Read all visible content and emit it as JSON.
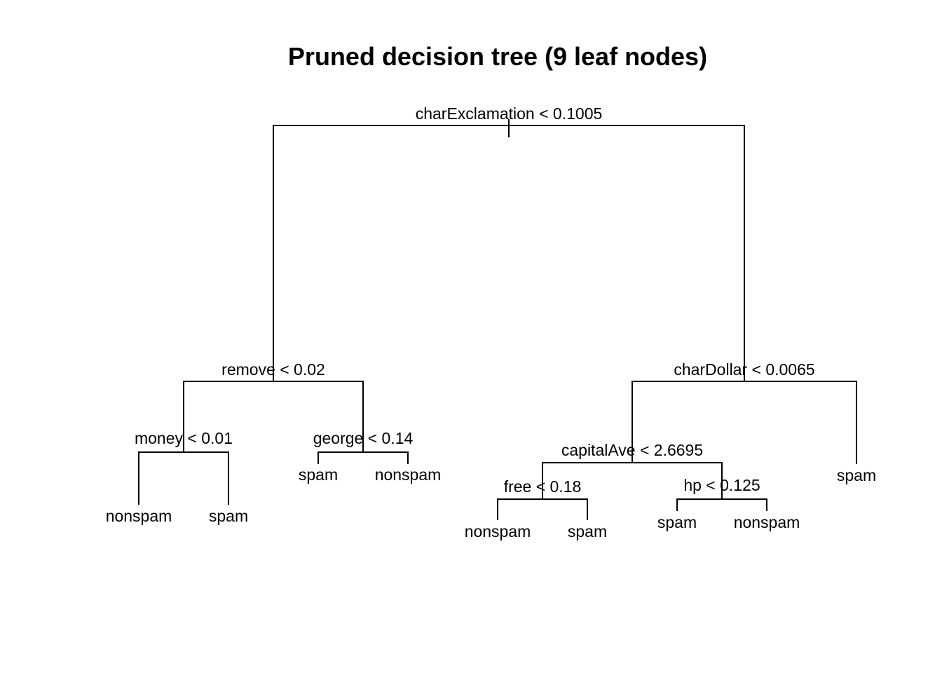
{
  "title": "Pruned decision tree (9 leaf nodes)",
  "tree": {
    "split": "charExclamation < 0.1005",
    "left": {
      "split": "remove < 0.02",
      "left": {
        "split": "money < 0.01",
        "left": {
          "leaf": "nonspam"
        },
        "right": {
          "leaf": "spam"
        }
      },
      "right": {
        "split": "george < 0.14",
        "left": {
          "leaf": "spam"
        },
        "right": {
          "leaf": "nonspam"
        }
      }
    },
    "right": {
      "split": "charDollar < 0.0065",
      "left": {
        "split": "capitalAve < 2.6695",
        "left": {
          "split": "free < 0.18",
          "left": {
            "leaf": "nonspam"
          },
          "right": {
            "leaf": "spam"
          }
        },
        "right": {
          "split": "hp < 0.125",
          "left": {
            "leaf": "spam"
          },
          "right": {
            "leaf": "nonspam"
          }
        }
      },
      "right": {
        "leaf": "spam"
      }
    }
  }
}
